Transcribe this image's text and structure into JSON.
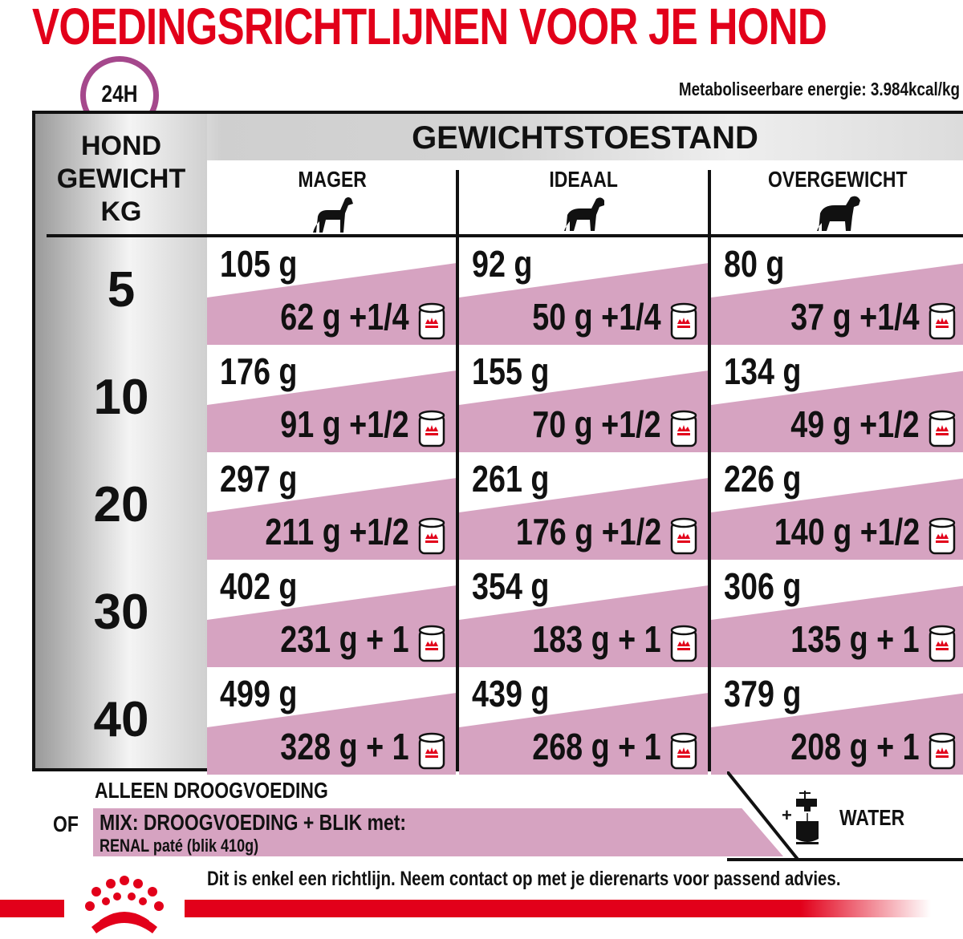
{
  "title": "VOEDINGSRICHTLIJNEN VOOR JE HOND",
  "clock_label": "24H",
  "energy": "Metaboliseerbare energie: 3.984kcal/kg",
  "table": {
    "dog_weight_header": [
      "HOND",
      "GEWICHT",
      "KG"
    ],
    "condition_header": "GEWICHTSTOESTAND",
    "columns": [
      {
        "label": "MAGER",
        "icon": "lean-dog-icon"
      },
      {
        "label": "IDEAAL",
        "icon": "ideal-dog-icon"
      },
      {
        "label": "OVERGEWICHT",
        "icon": "overweight-dog-icon"
      }
    ],
    "rows": [
      {
        "kg": "5",
        "cells": [
          {
            "dry": "105 g",
            "mix": "62 g +1/4"
          },
          {
            "dry": "92 g",
            "mix": "50 g +1/4"
          },
          {
            "dry": "80 g",
            "mix": "37 g +1/4"
          }
        ]
      },
      {
        "kg": "10",
        "cells": [
          {
            "dry": "176 g",
            "mix": "91 g +1/2"
          },
          {
            "dry": "155 g",
            "mix": "70 g +1/2"
          },
          {
            "dry": "134 g",
            "mix": "49 g +1/2"
          }
        ]
      },
      {
        "kg": "20",
        "cells": [
          {
            "dry": "297 g",
            "mix": "211 g +1/2"
          },
          {
            "dry": "261 g",
            "mix": "176 g +1/2"
          },
          {
            "dry": "226 g",
            "mix": "140 g +1/2"
          }
        ]
      },
      {
        "kg": "30",
        "cells": [
          {
            "dry": "402 g",
            "mix": "231 g + 1"
          },
          {
            "dry": "354 g",
            "mix": "183 g + 1"
          },
          {
            "dry": "306 g",
            "mix": "135 g + 1"
          }
        ]
      },
      {
        "kg": "40",
        "cells": [
          {
            "dry": "499 g",
            "mix": "328 g + 1"
          },
          {
            "dry": "439 g",
            "mix": "268 g + 1"
          },
          {
            "dry": "379 g",
            "mix": "208 g + 1"
          }
        ]
      }
    ]
  },
  "legend": {
    "dry_only": "ALLEEN DROOGVOEDING",
    "or": "OF",
    "mix_line1": "MIX: DROOGVOEDING + BLIK met:",
    "mix_line2": "RENAL paté (blik 410g)",
    "plus": "+",
    "water": "WATER"
  },
  "disclaimer": "Dit is enkel een richtlijn. Neem contact op met je dierenarts voor passend advies.",
  "colors": {
    "brand_red": "#e2001a",
    "pink": "#d6a3c1",
    "clock_purple": "#a5488c"
  }
}
